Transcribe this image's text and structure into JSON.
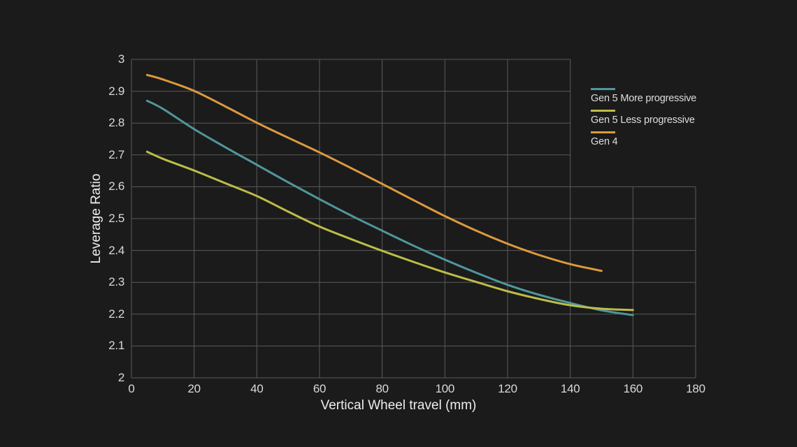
{
  "chart_data": {
    "type": "line",
    "title": "",
    "xlabel": "Vertical Wheel travel (mm)",
    "ylabel": "Leverage Ratio",
    "xlim": [
      0,
      180
    ],
    "ylim": [
      2,
      3
    ],
    "x_tick_labels": [
      "0",
      "20",
      "40",
      "60",
      "80",
      "100",
      "120",
      "140",
      "160",
      "180"
    ],
    "y_tick_labels": [
      "2",
      "2.1",
      "2.2",
      "2.3",
      "2.4",
      "2.5",
      "2.6",
      "2.7",
      "2.8",
      "2.9",
      "3"
    ],
    "grid": true,
    "grid_step_note": "grid rows above 2.6 span only to x=140; rows 2.0-2.6 span to x=180",
    "legend_position": "right of plot, stacked, swatch above label",
    "series": [
      {
        "name": "Gen 5 More progressive",
        "color": "#4f979d",
        "points": [
          [
            5,
            2.87
          ],
          [
            10,
            2.845
          ],
          [
            20,
            2.781
          ],
          [
            30,
            2.724
          ],
          [
            40,
            2.669
          ],
          [
            50,
            2.614
          ],
          [
            60,
            2.561
          ],
          [
            70,
            2.51
          ],
          [
            80,
            2.462
          ],
          [
            90,
            2.415
          ],
          [
            100,
            2.371
          ],
          [
            110,
            2.33
          ],
          [
            120,
            2.292
          ],
          [
            130,
            2.261
          ],
          [
            140,
            2.235
          ],
          [
            150,
            2.212
          ],
          [
            160,
            2.197
          ]
        ]
      },
      {
        "name": "Gen 5 Less progressive",
        "color": "#bcbd48",
        "points": [
          [
            5,
            2.71
          ],
          [
            10,
            2.688
          ],
          [
            20,
            2.651
          ],
          [
            30,
            2.611
          ],
          [
            40,
            2.571
          ],
          [
            50,
            2.522
          ],
          [
            60,
            2.475
          ],
          [
            70,
            2.436
          ],
          [
            80,
            2.399
          ],
          [
            90,
            2.364
          ],
          [
            100,
            2.331
          ],
          [
            110,
            2.301
          ],
          [
            120,
            2.272
          ],
          [
            130,
            2.248
          ],
          [
            140,
            2.228
          ],
          [
            150,
            2.217
          ],
          [
            160,
            2.213
          ]
        ]
      },
      {
        "name": "Gen 4",
        "color": "#dc9a3e",
        "points": [
          [
            5,
            2.951
          ],
          [
            10,
            2.937
          ],
          [
            20,
            2.901
          ],
          [
            30,
            2.852
          ],
          [
            40,
            2.801
          ],
          [
            50,
            2.754
          ],
          [
            60,
            2.708
          ],
          [
            70,
            2.659
          ],
          [
            80,
            2.609
          ],
          [
            90,
            2.558
          ],
          [
            100,
            2.508
          ],
          [
            110,
            2.462
          ],
          [
            120,
            2.421
          ],
          [
            130,
            2.386
          ],
          [
            140,
            2.357
          ],
          [
            150,
            2.336
          ]
        ]
      }
    ],
    "style": {
      "background": "#1b1b1b",
      "grid_color": "#5a5a5a",
      "tick_text_color": "#d9d9d9",
      "axis_title_color": "#ededed",
      "legend_text_color": "#dddddd",
      "line_width": 3
    }
  }
}
